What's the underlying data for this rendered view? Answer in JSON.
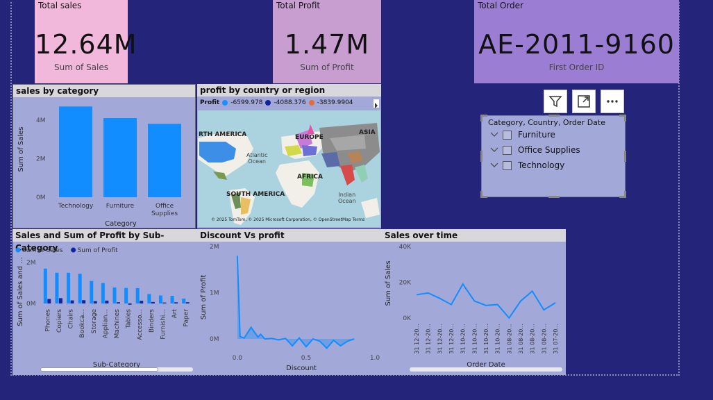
{
  "kpis": [
    {
      "title": "Total sales",
      "value": "12.64M",
      "caption": "Sum of Sales",
      "color": "#f2b8dc"
    },
    {
      "title": "Total Profit",
      "value": "1.47M",
      "caption": "Sum of Profit",
      "color": "#c89ed0"
    },
    {
      "title": "Total Order",
      "value": "AE-2011-9160",
      "caption": "First Order ID",
      "color": "#9b7ed4"
    }
  ],
  "toolbar": {
    "filter_icon": "filter-icon",
    "focus_icon": "focus-mode-icon",
    "more_icon": "more-options-icon"
  },
  "slicer": {
    "title": "Category, Country, Order Date",
    "items": [
      "Furniture",
      "Office Supplies",
      "Technology"
    ]
  },
  "map": {
    "title": "profit by country or region",
    "legend_label": "Profit",
    "legend": [
      {
        "label": "-6599.978",
        "color": "#1a90ff"
      },
      {
        "label": "-4088.376",
        "color": "#12239e"
      },
      {
        "label": "-3839.9904",
        "color": "#e66c37"
      }
    ],
    "labels": {
      "north_america": "RTH AMERICA",
      "europe": "EUROPE",
      "asia": "ASIA",
      "africa": "AFRICA",
      "south_america": "SOUTH AMERICA",
      "atlantic": "Atlantic\nOcean",
      "indian": "Indian\nOcean"
    },
    "attribution": "© 2025 TomTom, © 2025 Microsoft Corporation, © OpenStreetMap  Terms"
  },
  "chart_data": [
    {
      "type": "bar",
      "title": "sales by category",
      "categories": [
        "Technology",
        "Furniture",
        "Office Supplies"
      ],
      "values": [
        4700000,
        4100000,
        3800000
      ],
      "xlabel": "Category",
      "ylabel": "Sum of Sales",
      "ylim": [
        0,
        5000000
      ],
      "yticks": [
        "0M",
        "2M",
        "4M"
      ],
      "color": "#118dff"
    },
    {
      "type": "bar",
      "title": "Sales and Sum of Profit by Sub-Category",
      "categories": [
        "Phones",
        "Copiers",
        "Chairs",
        "Bookca...",
        "Storage",
        "Applian...",
        "Machines",
        "Tables",
        "Accesso...",
        "Binders",
        "Furnishi...",
        "Art",
        "Paper"
      ],
      "series": [
        {
          "name": "Sum of Sales",
          "values": [
            1700000,
            1500000,
            1500000,
            1450000,
            1100000,
            1000000,
            780000,
            760000,
            750000,
            460000,
            390000,
            370000,
            240000
          ],
          "color": "#118dff"
        },
        {
          "name": "Sum of Profit",
          "values": [
            220000,
            260000,
            150000,
            160000,
            110000,
            140000,
            60000,
            -60000,
            130000,
            72000,
            46000,
            57000,
            60000
          ],
          "color": "#12239e"
        }
      ],
      "xlabel": "Sub-Category",
      "ylabel": "Sum of Sales and ...",
      "ylim": [
        -100000,
        2000000
      ],
      "yticks": [
        "0M",
        "2M"
      ]
    },
    {
      "type": "area",
      "title": "Discount Vs profit",
      "x": [
        0.0,
        0.02,
        0.05,
        0.1,
        0.15,
        0.17,
        0.2,
        0.25,
        0.3,
        0.35,
        0.4,
        0.45,
        0.5,
        0.55,
        0.6,
        0.65,
        0.7,
        0.75,
        0.8,
        0.85
      ],
      "values": [
        1800000,
        50000,
        20000,
        250000,
        40000,
        100000,
        0,
        10000,
        -20000,
        10000,
        -150000,
        20000,
        -170000,
        0,
        -50000,
        -200000,
        -30000,
        -150000,
        -50000,
        0
      ],
      "xlabel": "Discount",
      "ylabel": "Sum of Profit",
      "xlim": [
        -0.1,
        1.0
      ],
      "ylim": [
        -300000,
        2000000
      ],
      "xticks": [
        "0.0",
        "0.5",
        "1.0"
      ],
      "yticks": [
        "0M",
        "1M",
        "2M"
      ],
      "color": "#118dff"
    },
    {
      "type": "line",
      "title": "Sales over time",
      "categories": [
        "31 12-20...",
        "31 12-20...",
        "31 12-20...",
        "31 12-20...",
        "31 10-20...",
        "31 10-20...",
        "31 10-20...",
        "31 10-20...",
        "31 08-20...",
        "31 08-20...",
        "31 08-20...",
        "31 08-20...",
        "31 07-20..."
      ],
      "values": [
        13000,
        14000,
        11000,
        7500,
        19000,
        9500,
        7000,
        7500,
        0,
        9500,
        15000,
        4500,
        8500
      ],
      "xlabel": "Order Date",
      "ylabel": "Sum of Sales",
      "ylim": [
        -2000,
        40000
      ],
      "yticks": [
        "0K",
        "20K",
        "40K"
      ],
      "color": "#118dff"
    }
  ]
}
